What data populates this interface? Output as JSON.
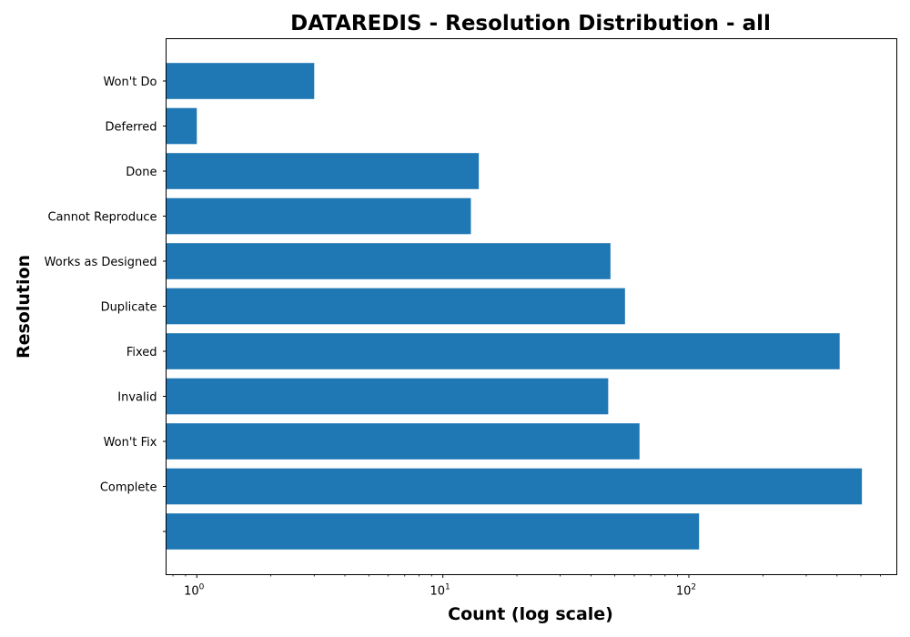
{
  "chart_data": {
    "type": "bar",
    "orientation": "horizontal",
    "title": "DATAREDIS - Resolution Distribution - all",
    "xlabel": "Count (log scale)",
    "ylabel": "Resolution",
    "x_scale": "log",
    "xlim": [
      0.75,
      700
    ],
    "x_ticks": [
      {
        "value": 1,
        "base": "10",
        "exp": "0"
      },
      {
        "value": 10,
        "base": "10",
        "exp": "1"
      },
      {
        "value": 100,
        "base": "10",
        "exp": "2"
      }
    ],
    "bar_color": "#1f77b4",
    "grid": false,
    "categories": [
      "Won't Do",
      "Deferred",
      "Done",
      "Cannot Reproduce",
      "Works as Designed",
      "Duplicate",
      "Fixed",
      "Invalid",
      "Won't Fix",
      "Complete",
      ""
    ],
    "values": [
      3,
      1,
      14,
      13,
      48,
      55,
      410,
      47,
      63,
      505,
      110
    ]
  }
}
